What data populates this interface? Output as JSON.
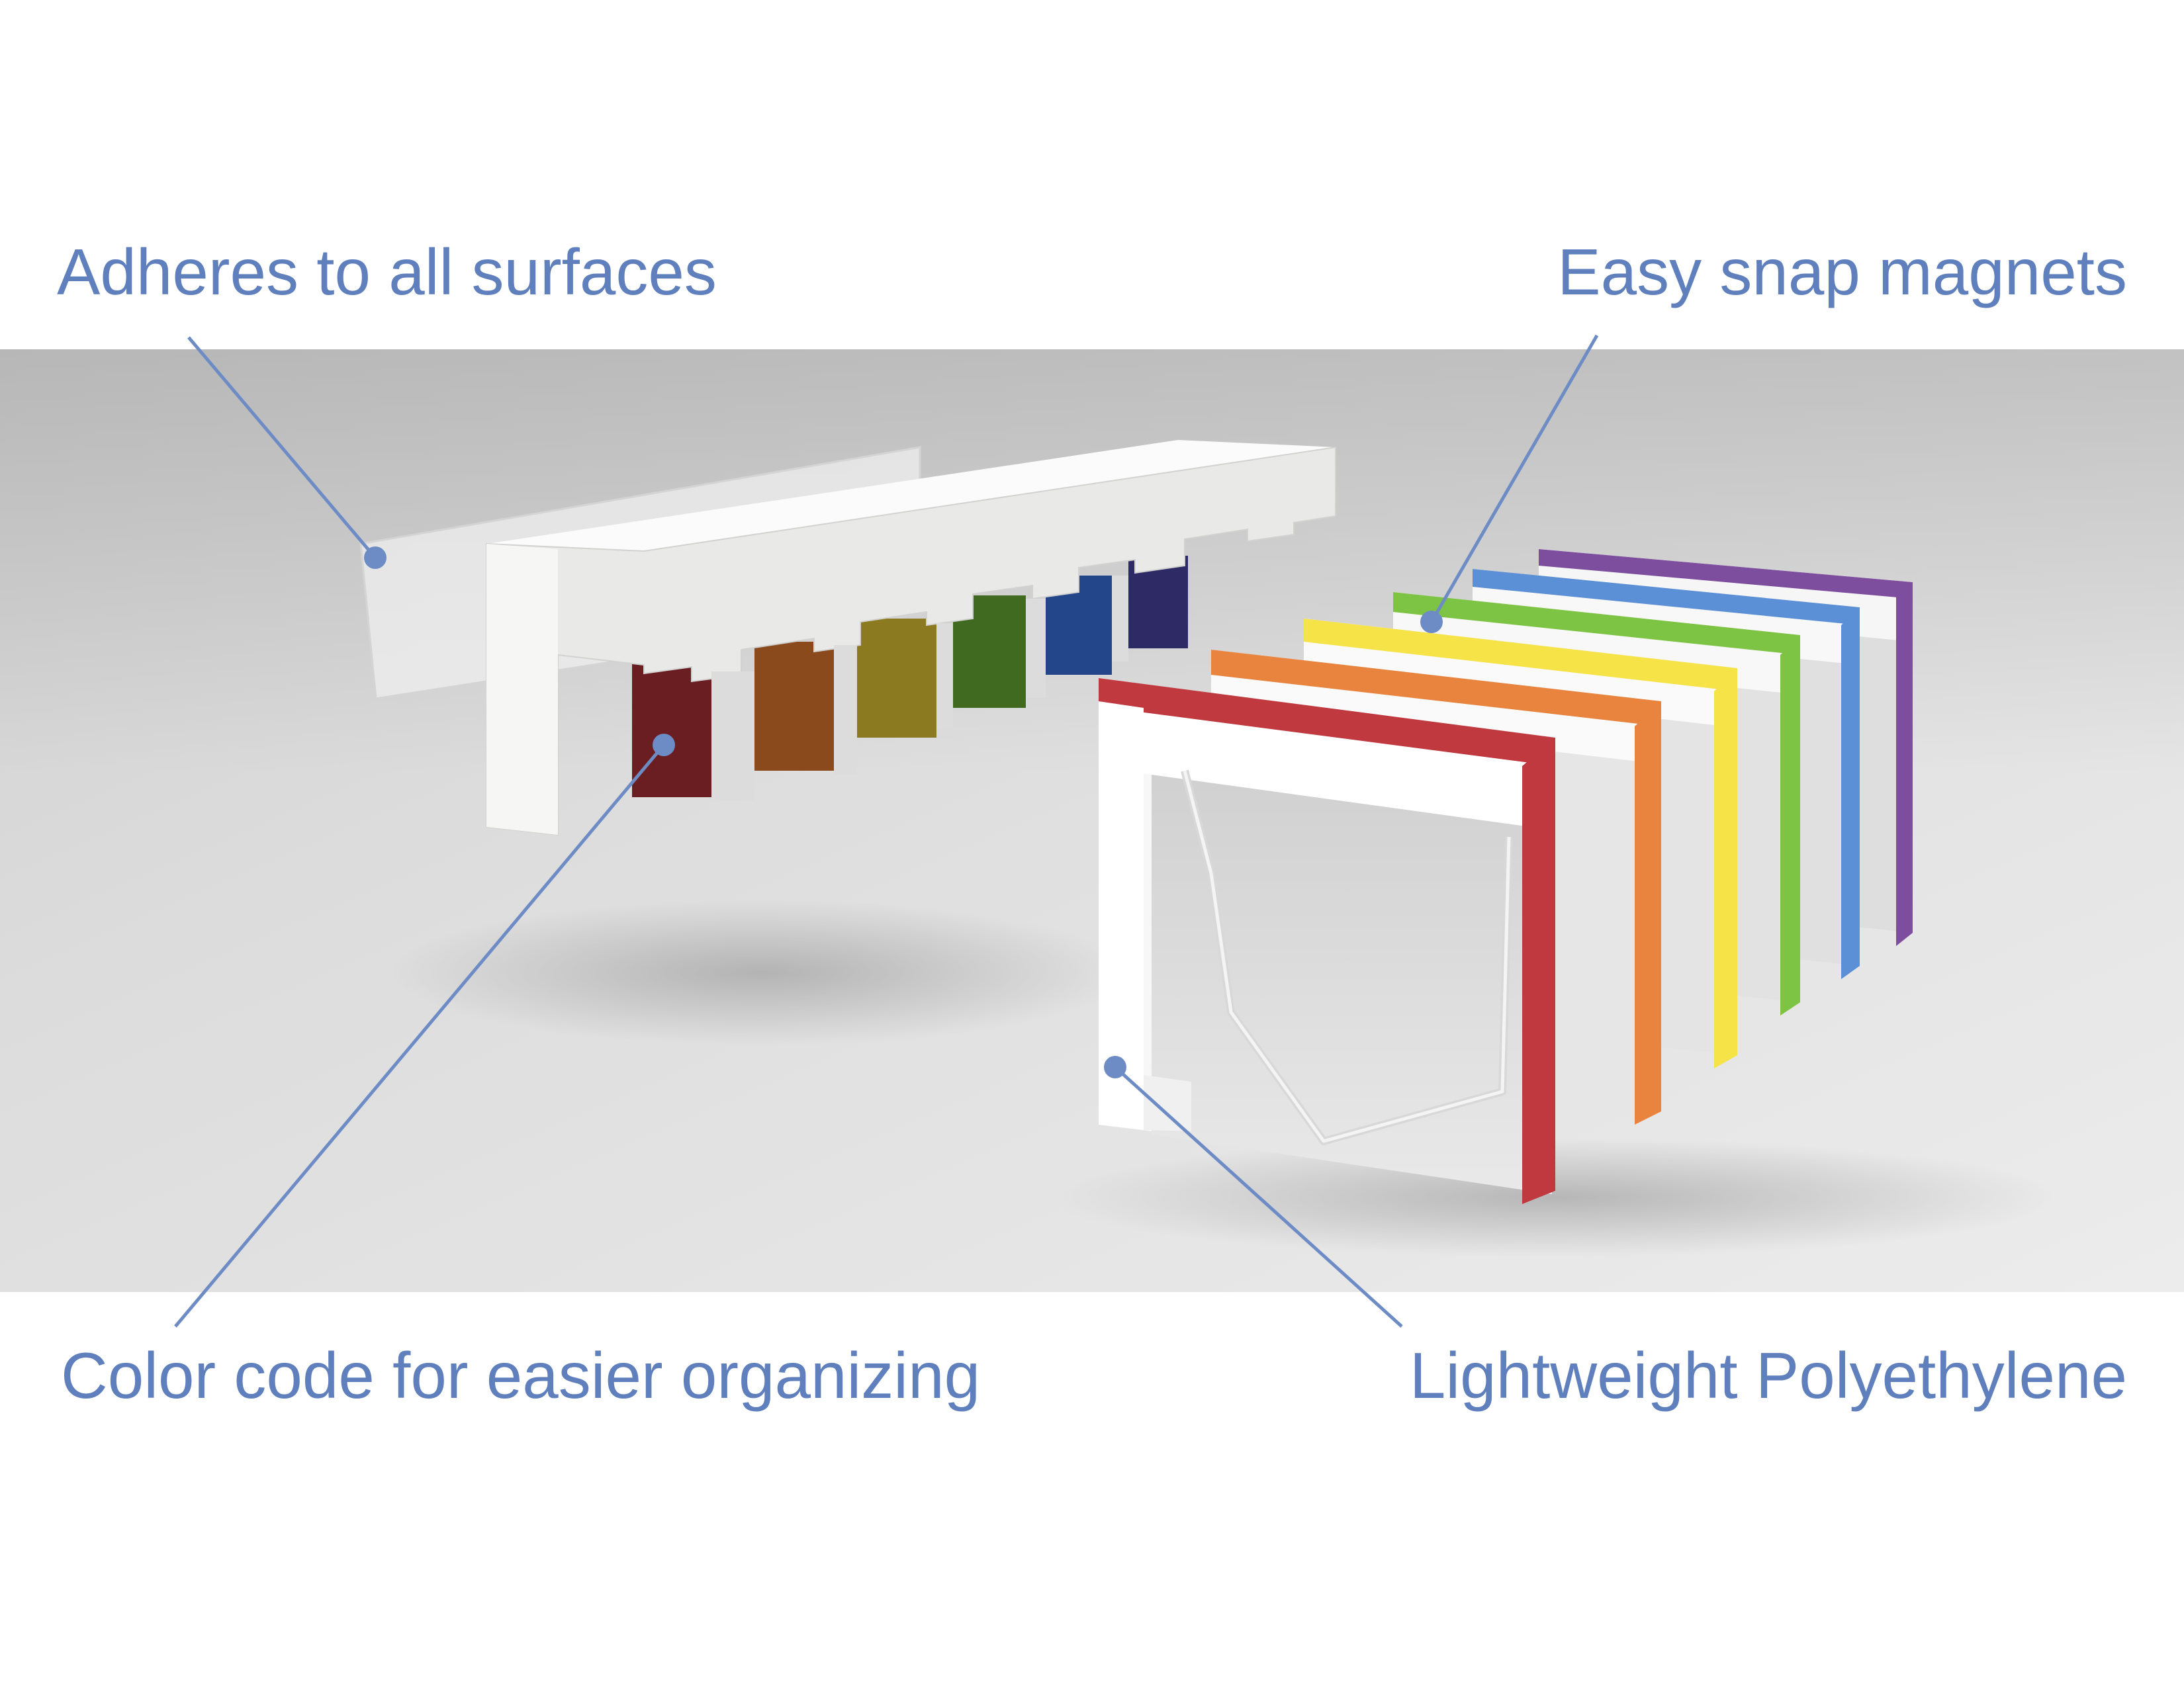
{
  "callouts": {
    "adhesive": "Adheres to all surfaces",
    "magnets": "Easy snap magnets",
    "color_code": "Color code for easier organizing",
    "material": "Lightweight Polyethylene"
  },
  "colors": {
    "callout": "#5f80bd",
    "red": "#c0393f",
    "orange": "#e8843e",
    "yellow": "#f5e348",
    "green": "#7ec444",
    "blue": "#5b8fd6",
    "purple": "#7e4e9e"
  }
}
